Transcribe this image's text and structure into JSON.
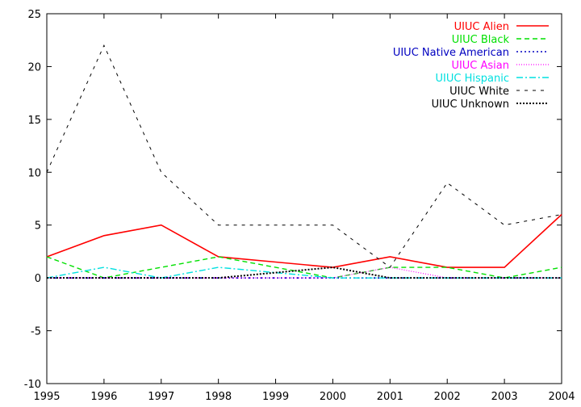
{
  "chart_data": {
    "type": "line",
    "x": [
      1995,
      1996,
      1997,
      1998,
      1999,
      2000,
      2001,
      2002,
      2003,
      2004
    ],
    "xlim": [
      1995,
      2004
    ],
    "ylim": [
      -10,
      25
    ],
    "x_ticks": [
      "1995",
      "1996",
      "1997",
      "1998",
      "1999",
      "2000",
      "2001",
      "2002",
      "2003",
      "2004"
    ],
    "y_ticks": [
      "-10",
      "-5",
      "0",
      "5",
      "10",
      "15",
      "20",
      "25"
    ],
    "y_tick_values": [
      -10,
      -5,
      0,
      5,
      10,
      15,
      20,
      25
    ],
    "grid": false,
    "legend_position": "top-right",
    "series": [
      {
        "name": "UIUC Alien",
        "color": "#ff0000",
        "dash": "solid",
        "values": [
          2,
          4,
          5,
          2,
          1.5,
          1,
          2,
          1,
          1,
          6
        ]
      },
      {
        "name": "UIUC Black",
        "color": "#00e000",
        "dash": "dashed",
        "values": [
          2,
          0,
          1,
          2,
          1,
          0,
          1,
          1,
          0,
          1
        ]
      },
      {
        "name": "UIUC Native American",
        "color": "#0000c0",
        "dash": "dotted",
        "values": [
          0,
          0,
          0,
          0,
          0,
          0,
          0,
          0,
          0,
          0
        ]
      },
      {
        "name": "UIUC Asian",
        "color": "#ff00ff",
        "dash": "fine-dotted",
        "values": [
          0,
          0,
          0,
          0,
          0,
          0,
          1,
          0,
          0,
          0
        ]
      },
      {
        "name": "UIUC Hispanic",
        "color": "#00e0e0",
        "dash": "dash-dot",
        "values": [
          0,
          1,
          0,
          1,
          0.5,
          0,
          0,
          0,
          0,
          0
        ]
      },
      {
        "name": "UIUC White",
        "color": "#000000",
        "dash": "sparse-dashed",
        "values": [
          10,
          22,
          10,
          5,
          5,
          5,
          1,
          9,
          5,
          6
        ]
      },
      {
        "name": "UIUC Unknown",
        "color": "#000000",
        "dash": "dense-dotted",
        "values": [
          0,
          0,
          0,
          0,
          0.5,
          1,
          0,
          0,
          0,
          0
        ]
      }
    ]
  }
}
